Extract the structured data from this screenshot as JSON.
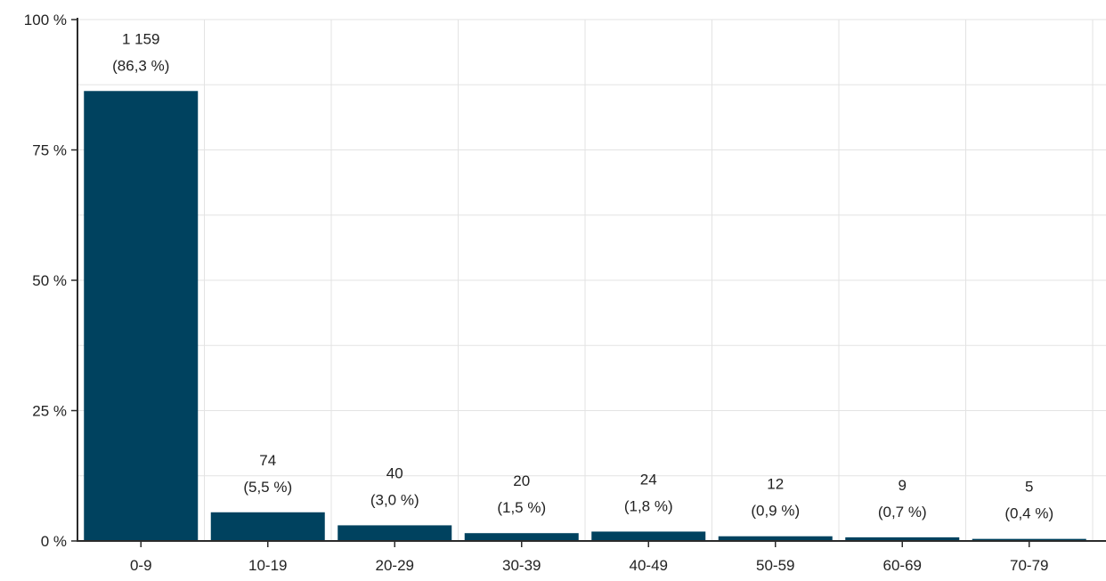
{
  "chart_data": {
    "type": "bar",
    "categories": [
      "0-9",
      "10-19",
      "20-29",
      "30-39",
      "40-49",
      "50-59",
      "60-69",
      "70-79"
    ],
    "values": [
      86.3,
      5.5,
      3.0,
      1.5,
      1.8,
      0.9,
      0.7,
      0.4
    ],
    "counts": [
      "1 159",
      "74",
      "40",
      "20",
      "24",
      "12",
      "9",
      "5"
    ],
    "percent_labels": [
      "(86,3 %)",
      "(5,5 %)",
      "(3,0 %)",
      "(1,5 %)",
      "(1,8 %)",
      "(0,9 %)",
      "(0,7 %)",
      "(0,4 %)"
    ],
    "ylim": [
      0,
      100
    ],
    "yticks": [
      0,
      25,
      50,
      75,
      100
    ],
    "ytick_labels": [
      "0 %",
      "25 %",
      "50 %",
      "75 %",
      "100 %"
    ],
    "grid": true,
    "bar_color": "#00425f",
    "title": "",
    "xlabel": "",
    "ylabel": ""
  }
}
